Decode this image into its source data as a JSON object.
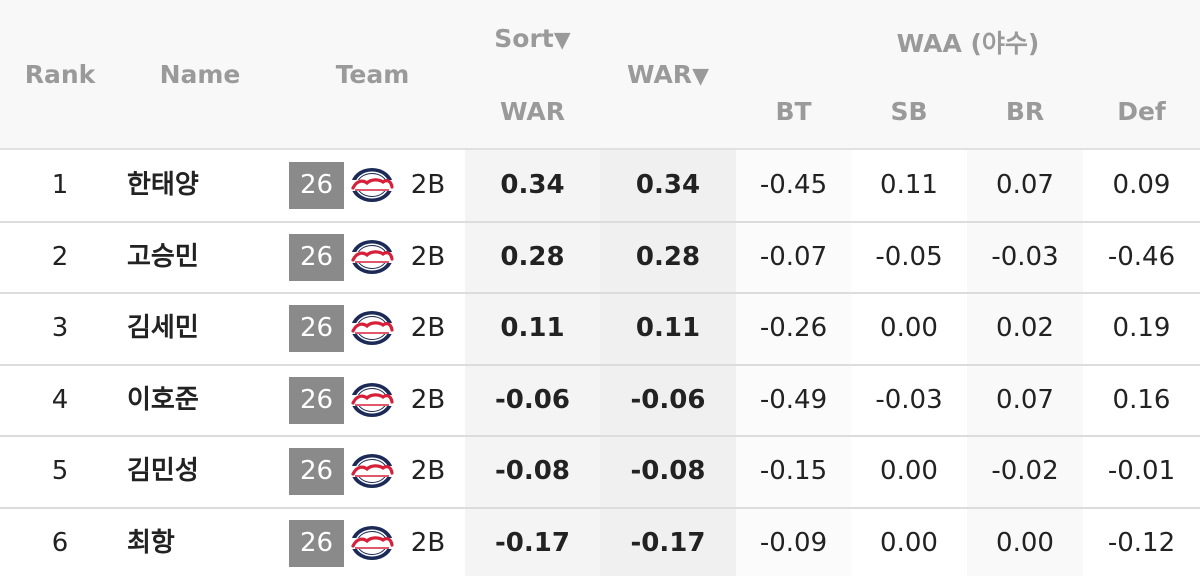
{
  "headers": {
    "rank": "Rank",
    "name": "Name",
    "team": "Team",
    "sort": "Sort",
    "sort_arrow": "▼",
    "war_mid": "WAR",
    "war_mid_arrow": "▼",
    "war_sub": "WAR",
    "waa_group": "WAA (야수)",
    "bt": "BT",
    "sb": "SB",
    "br": "BR",
    "def": "Def"
  },
  "team_logo": "giants-logo",
  "rows": [
    {
      "rank": "1",
      "name": "한태양",
      "num": "26",
      "pos": "2B",
      "war": "0.34",
      "war2": "0.34",
      "bt": "-0.45",
      "sb": "0.11",
      "br": "0.07",
      "def": "0.09"
    },
    {
      "rank": "2",
      "name": "고승민",
      "num": "26",
      "pos": "2B",
      "war": "0.28",
      "war2": "0.28",
      "bt": "-0.07",
      "sb": "-0.05",
      "br": "-0.03",
      "def": "-0.46"
    },
    {
      "rank": "3",
      "name": "김세민",
      "num": "26",
      "pos": "2B",
      "war": "0.11",
      "war2": "0.11",
      "bt": "-0.26",
      "sb": "0.00",
      "br": "0.02",
      "def": "0.19"
    },
    {
      "rank": "4",
      "name": "이호준",
      "num": "26",
      "pos": "2B",
      "war": "-0.06",
      "war2": "-0.06",
      "bt": "-0.49",
      "sb": "-0.03",
      "br": "0.07",
      "def": "0.16"
    },
    {
      "rank": "5",
      "name": "김민성",
      "num": "26",
      "pos": "2B",
      "war": "-0.08",
      "war2": "-0.08",
      "bt": "-0.15",
      "sb": "0.00",
      "br": "-0.02",
      "def": "-0.01"
    },
    {
      "rank": "6",
      "name": "최항",
      "num": "26",
      "pos": "2B",
      "war": "-0.17",
      "war2": "-0.17",
      "bt": "-0.09",
      "sb": "0.00",
      "br": "0.00",
      "def": "-0.12"
    }
  ]
}
